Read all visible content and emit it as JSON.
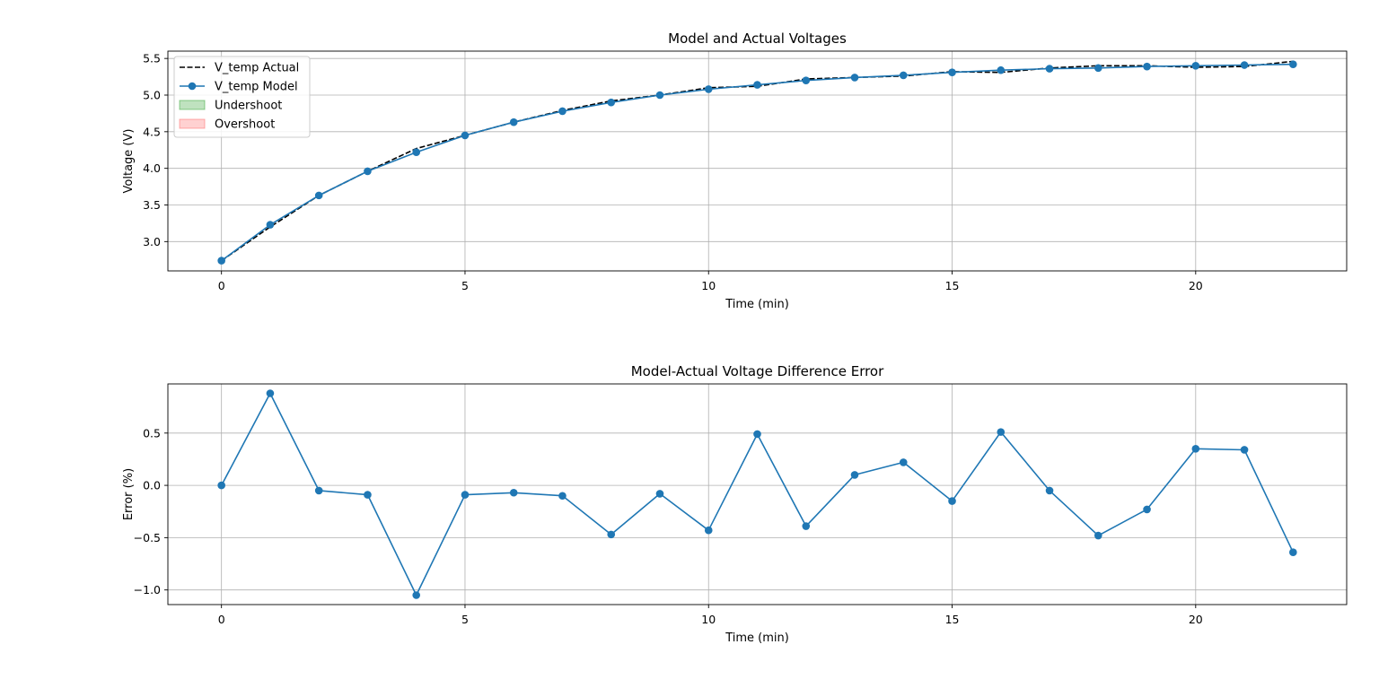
{
  "chart_data": [
    {
      "type": "line",
      "title": "Model and Actual Voltages",
      "xlabel": "Time (min)",
      "ylabel": "Voltage (V)",
      "xlim": [
        -1.1,
        23.1
      ],
      "ylim": [
        2.6,
        5.6
      ],
      "xticks": [
        0,
        5,
        10,
        15,
        20
      ],
      "yticks": [
        3.0,
        3.5,
        4.0,
        4.5,
        5.0,
        5.5
      ],
      "grid": true,
      "legend_position": "top-left",
      "x": [
        0,
        1,
        2,
        3,
        4,
        5,
        6,
        7,
        8,
        9,
        10,
        11,
        12,
        13,
        14,
        15,
        16,
        17,
        18,
        19,
        20,
        21,
        22
      ],
      "series": [
        {
          "name": "V_temp Actual",
          "style": "dashed",
          "color": "#000000",
          "values": [
            2.74,
            3.2,
            3.63,
            3.96,
            4.27,
            4.45,
            4.63,
            4.79,
            4.92,
            5.0,
            5.1,
            5.12,
            5.22,
            5.24,
            5.26,
            5.32,
            5.31,
            5.37,
            5.4,
            5.4,
            5.38,
            5.39,
            5.46
          ]
        },
        {
          "name": "V_temp Model",
          "style": "solid-marker",
          "color": "#1f77b4",
          "values": [
            2.74,
            3.23,
            3.63,
            3.96,
            4.22,
            4.45,
            4.63,
            4.78,
            4.9,
            5.0,
            5.08,
            5.14,
            5.2,
            5.24,
            5.27,
            5.31,
            5.34,
            5.36,
            5.37,
            5.39,
            5.4,
            5.41,
            5.42
          ]
        }
      ],
      "legend_extra": [
        {
          "name": "Undershoot",
          "color": "#2ca02c"
        },
        {
          "name": "Overshoot",
          "color": "#ff6666"
        }
      ]
    },
    {
      "type": "line",
      "title": "Model-Actual Voltage Difference Error",
      "xlabel": "Time (min)",
      "ylabel": "Error (%)",
      "xlim": [
        -1.1,
        23.1
      ],
      "ylim": [
        -1.14,
        0.97
      ],
      "xticks": [
        0,
        5,
        10,
        15,
        20
      ],
      "yticks": [
        -1.0,
        -0.5,
        0.0,
        0.5
      ],
      "grid": true,
      "x": [
        0,
        1,
        2,
        3,
        4,
        5,
        6,
        7,
        8,
        9,
        10,
        11,
        12,
        13,
        14,
        15,
        16,
        17,
        18,
        19,
        20,
        21,
        22
      ],
      "series": [
        {
          "name": "",
          "color": "#1f77b4",
          "values": [
            0.0,
            0.88,
            -0.05,
            -0.09,
            -1.05,
            -0.09,
            -0.07,
            -0.1,
            -0.47,
            -0.08,
            -0.43,
            0.49,
            -0.39,
            0.1,
            0.22,
            -0.15,
            0.51,
            -0.05,
            -0.48,
            -0.23,
            0.35,
            0.34,
            -0.64
          ]
        }
      ]
    }
  ]
}
